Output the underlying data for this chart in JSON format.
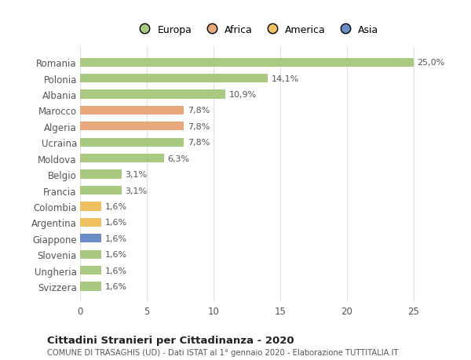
{
  "countries": [
    "Romania",
    "Polonia",
    "Albania",
    "Marocco",
    "Algeria",
    "Ucraina",
    "Moldova",
    "Belgio",
    "Francia",
    "Colombia",
    "Argentina",
    "Giappone",
    "Slovenia",
    "Ungheria",
    "Svizzera"
  ],
  "values": [
    25.0,
    14.1,
    10.9,
    7.8,
    7.8,
    7.8,
    6.3,
    3.1,
    3.1,
    1.6,
    1.6,
    1.6,
    1.6,
    1.6,
    1.6
  ],
  "labels": [
    "25,0%",
    "14,1%",
    "10,9%",
    "7,8%",
    "7,8%",
    "7,8%",
    "6,3%",
    "3,1%",
    "3,1%",
    "1,6%",
    "1,6%",
    "1,6%",
    "1,6%",
    "1,6%",
    "1,6%"
  ],
  "continents": [
    "Europa",
    "Europa",
    "Europa",
    "Africa",
    "Africa",
    "Europa",
    "Europa",
    "Europa",
    "Europa",
    "America",
    "America",
    "Asia",
    "Europa",
    "Europa",
    "Europa"
  ],
  "colors": {
    "Europa": "#a8c97f",
    "Africa": "#e8a87c",
    "America": "#f0c060",
    "Asia": "#6b8cc7"
  },
  "xlim": [
    0,
    26.5
  ],
  "title": "Cittadini Stranieri per Cittadinanza - 2020",
  "subtitle": "COMUNE DI TRASAGHIS (UD) - Dati ISTAT al 1° gennaio 2020 - Elaborazione TUTTITALIA.IT",
  "background_color": "#ffffff",
  "grid_color": "#e0e0e0",
  "xticks": [
    0,
    5,
    10,
    15,
    20,
    25
  ],
  "legend_order": [
    "Europa",
    "Africa",
    "America",
    "Asia"
  ]
}
